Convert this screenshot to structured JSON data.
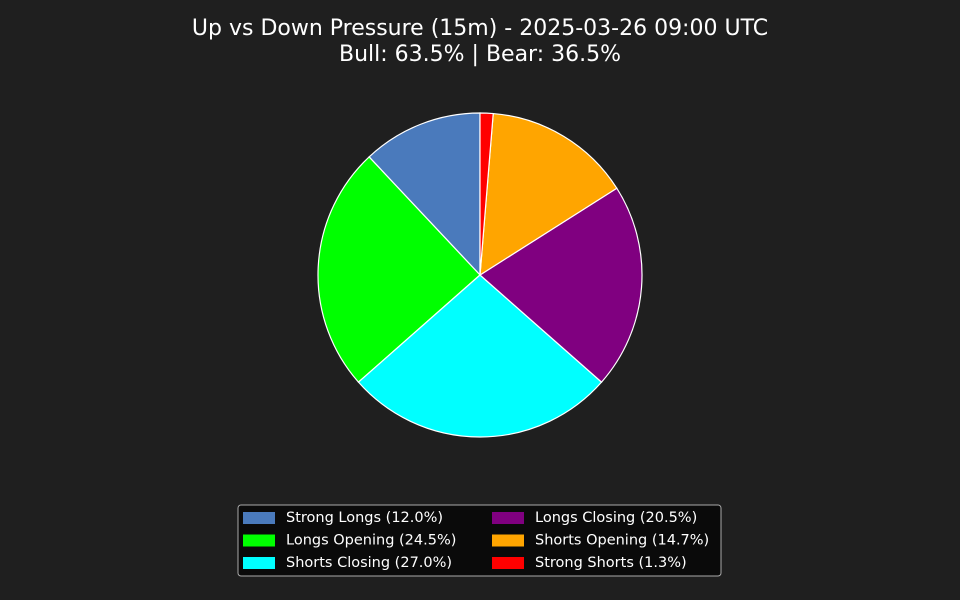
{
  "chart_data": {
    "type": "pie",
    "title": "Up vs Down Pressure (15m) - 2025-03-26 09:00 UTC",
    "subtitle": "Bull: 63.5% | Bear: 36.5%",
    "categories": [
      "Strong Longs (12.0%)",
      "Longs Opening (24.5%)",
      "Shorts Closing (27.0%)",
      "Longs Closing (20.5%)",
      "Shorts Opening (14.7%)",
      "Strong Shorts (1.3%)"
    ],
    "values": [
      12.0,
      24.5,
      27.0,
      20.5,
      14.7,
      1.3
    ],
    "colors": [
      "#4a7abc",
      "#00ff00",
      "#00ffff",
      "#800080",
      "#ffa500",
      "#ff0000"
    ]
  }
}
